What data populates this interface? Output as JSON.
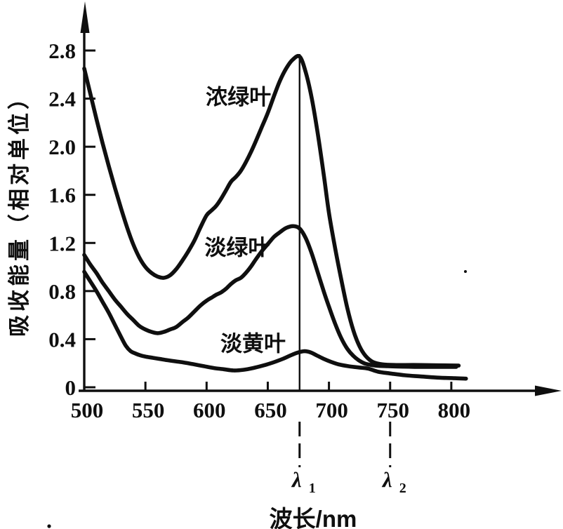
{
  "figure": {
    "background": "#ffffff",
    "ink": "#0f0f0f"
  },
  "chart_data": {
    "type": "line",
    "title": "",
    "xlabel": "波长/nm",
    "ylabel": "吸收能量（相对单位）",
    "x_ticks": [
      500,
      550,
      600,
      650,
      700,
      750,
      800
    ],
    "y_tick_labels": [
      "0",
      "0.4",
      "0.8",
      "1.2",
      "1.6",
      "2.0",
      "2.4",
      "2.8"
    ],
    "xlim": [
      500,
      815
    ],
    "ylim": [
      0,
      3.05
    ],
    "grid": false,
    "legend_position": "inline-labels",
    "series": [
      {
        "id": "dark-green-leaf",
        "name": "浓绿叶",
        "label_anchor": {
          "nm": 626,
          "value": 2.42
        },
        "points": [
          [
            500,
            2.65
          ],
          [
            505,
            2.44
          ],
          [
            510,
            2.23
          ],
          [
            515,
            2.03
          ],
          [
            520,
            1.84
          ],
          [
            525,
            1.66
          ],
          [
            530,
            1.49
          ],
          [
            535,
            1.33
          ],
          [
            540,
            1.19
          ],
          [
            545,
            1.08
          ],
          [
            550,
            1.0
          ],
          [
            555,
            0.95
          ],
          [
            560,
            0.92
          ],
          [
            565,
            0.91
          ],
          [
            570,
            0.93
          ],
          [
            575,
            0.98
          ],
          [
            580,
            1.05
          ],
          [
            585,
            1.13
          ],
          [
            590,
            1.22
          ],
          [
            595,
            1.33
          ],
          [
            600,
            1.43
          ],
          [
            604,
            1.47
          ],
          [
            608,
            1.51
          ],
          [
            612,
            1.57
          ],
          [
            616,
            1.64
          ],
          [
            620,
            1.71
          ],
          [
            624,
            1.75
          ],
          [
            628,
            1.8
          ],
          [
            632,
            1.87
          ],
          [
            636,
            1.95
          ],
          [
            640,
            2.04
          ],
          [
            645,
            2.16
          ],
          [
            650,
            2.28
          ],
          [
            655,
            2.42
          ],
          [
            660,
            2.55
          ],
          [
            665,
            2.65
          ],
          [
            670,
            2.72
          ],
          [
            676,
            2.75
          ],
          [
            681,
            2.62
          ],
          [
            686,
            2.4
          ],
          [
            691,
            2.1
          ],
          [
            696,
            1.75
          ],
          [
            700,
            1.45
          ],
          [
            705,
            1.16
          ],
          [
            710,
            0.9
          ],
          [
            715,
            0.66
          ],
          [
            720,
            0.47
          ],
          [
            725,
            0.34
          ],
          [
            730,
            0.26
          ],
          [
            736,
            0.21
          ],
          [
            744,
            0.19
          ],
          [
            755,
            0.185
          ],
          [
            775,
            0.185
          ],
          [
            806,
            0.18
          ]
        ]
      },
      {
        "id": "light-green-leaf",
        "name": "淡绿叶",
        "label_anchor": {
          "nm": 625,
          "value": 1.17
        },
        "points": [
          [
            500,
            1.1
          ],
          [
            505,
            1.02
          ],
          [
            510,
            0.95
          ],
          [
            515,
            0.87
          ],
          [
            520,
            0.8
          ],
          [
            525,
            0.73
          ],
          [
            530,
            0.67
          ],
          [
            535,
            0.61
          ],
          [
            540,
            0.56
          ],
          [
            545,
            0.51
          ],
          [
            550,
            0.48
          ],
          [
            555,
            0.46
          ],
          [
            560,
            0.45
          ],
          [
            565,
            0.46
          ],
          [
            570,
            0.48
          ],
          [
            575,
            0.5
          ],
          [
            580,
            0.54
          ],
          [
            585,
            0.58
          ],
          [
            590,
            0.63
          ],
          [
            595,
            0.68
          ],
          [
            600,
            0.72
          ],
          [
            604,
            0.745
          ],
          [
            608,
            0.77
          ],
          [
            612,
            0.79
          ],
          [
            616,
            0.82
          ],
          [
            620,
            0.86
          ],
          [
            624,
            0.89
          ],
          [
            628,
            0.91
          ],
          [
            632,
            0.95
          ],
          [
            636,
            1.0
          ],
          [
            640,
            1.06
          ],
          [
            645,
            1.13
          ],
          [
            650,
            1.19
          ],
          [
            655,
            1.25
          ],
          [
            660,
            1.29
          ],
          [
            665,
            1.325
          ],
          [
            671,
            1.34
          ],
          [
            676,
            1.32
          ],
          [
            681,
            1.24
          ],
          [
            686,
            1.11
          ],
          [
            691,
            0.95
          ],
          [
            696,
            0.79
          ],
          [
            700,
            0.67
          ],
          [
            705,
            0.53
          ],
          [
            710,
            0.41
          ],
          [
            715,
            0.32
          ],
          [
            720,
            0.26
          ],
          [
            725,
            0.22
          ],
          [
            730,
            0.195
          ],
          [
            738,
            0.18
          ],
          [
            748,
            0.175
          ],
          [
            770,
            0.17
          ],
          [
            804,
            0.17
          ]
        ]
      },
      {
        "id": "pale-yellow-leaf",
        "name": "淡黄叶",
        "label_anchor": {
          "nm": 638,
          "value": 0.37
        },
        "points": [
          [
            500,
            0.96
          ],
          [
            505,
            0.88
          ],
          [
            510,
            0.8
          ],
          [
            515,
            0.71
          ],
          [
            520,
            0.62
          ],
          [
            525,
            0.52
          ],
          [
            530,
            0.42
          ],
          [
            534,
            0.345
          ],
          [
            538,
            0.3
          ],
          [
            542,
            0.28
          ],
          [
            546,
            0.265
          ],
          [
            550,
            0.255
          ],
          [
            556,
            0.245
          ],
          [
            562,
            0.235
          ],
          [
            568,
            0.225
          ],
          [
            575,
            0.215
          ],
          [
            582,
            0.205
          ],
          [
            590,
            0.19
          ],
          [
            598,
            0.175
          ],
          [
            606,
            0.16
          ],
          [
            614,
            0.15
          ],
          [
            622,
            0.14
          ],
          [
            630,
            0.145
          ],
          [
            638,
            0.16
          ],
          [
            646,
            0.18
          ],
          [
            654,
            0.205
          ],
          [
            662,
            0.235
          ],
          [
            668,
            0.262
          ],
          [
            674,
            0.287
          ],
          [
            680,
            0.3
          ],
          [
            685,
            0.29
          ],
          [
            690,
            0.265
          ],
          [
            696,
            0.235
          ],
          [
            702,
            0.21
          ],
          [
            708,
            0.19
          ],
          [
            716,
            0.175
          ],
          [
            724,
            0.165
          ],
          [
            732,
            0.155
          ],
          [
            740,
            0.13
          ],
          [
            750,
            0.115
          ],
          [
            762,
            0.1
          ],
          [
            775,
            0.09
          ],
          [
            790,
            0.08
          ],
          [
            803,
            0.075
          ],
          [
            812,
            0.072
          ]
        ]
      }
    ],
    "annotations": {
      "peak_line": {
        "nm": 676,
        "from_value": 0,
        "to_value": 2.77
      },
      "lambda_markers": [
        {
          "id": "lambda-1",
          "nm": 676,
          "symbol": "λ",
          "subscript": "1"
        },
        {
          "id": "lambda-2",
          "nm": 750,
          "symbol": "λ",
          "subscript": "2"
        }
      ]
    }
  }
}
